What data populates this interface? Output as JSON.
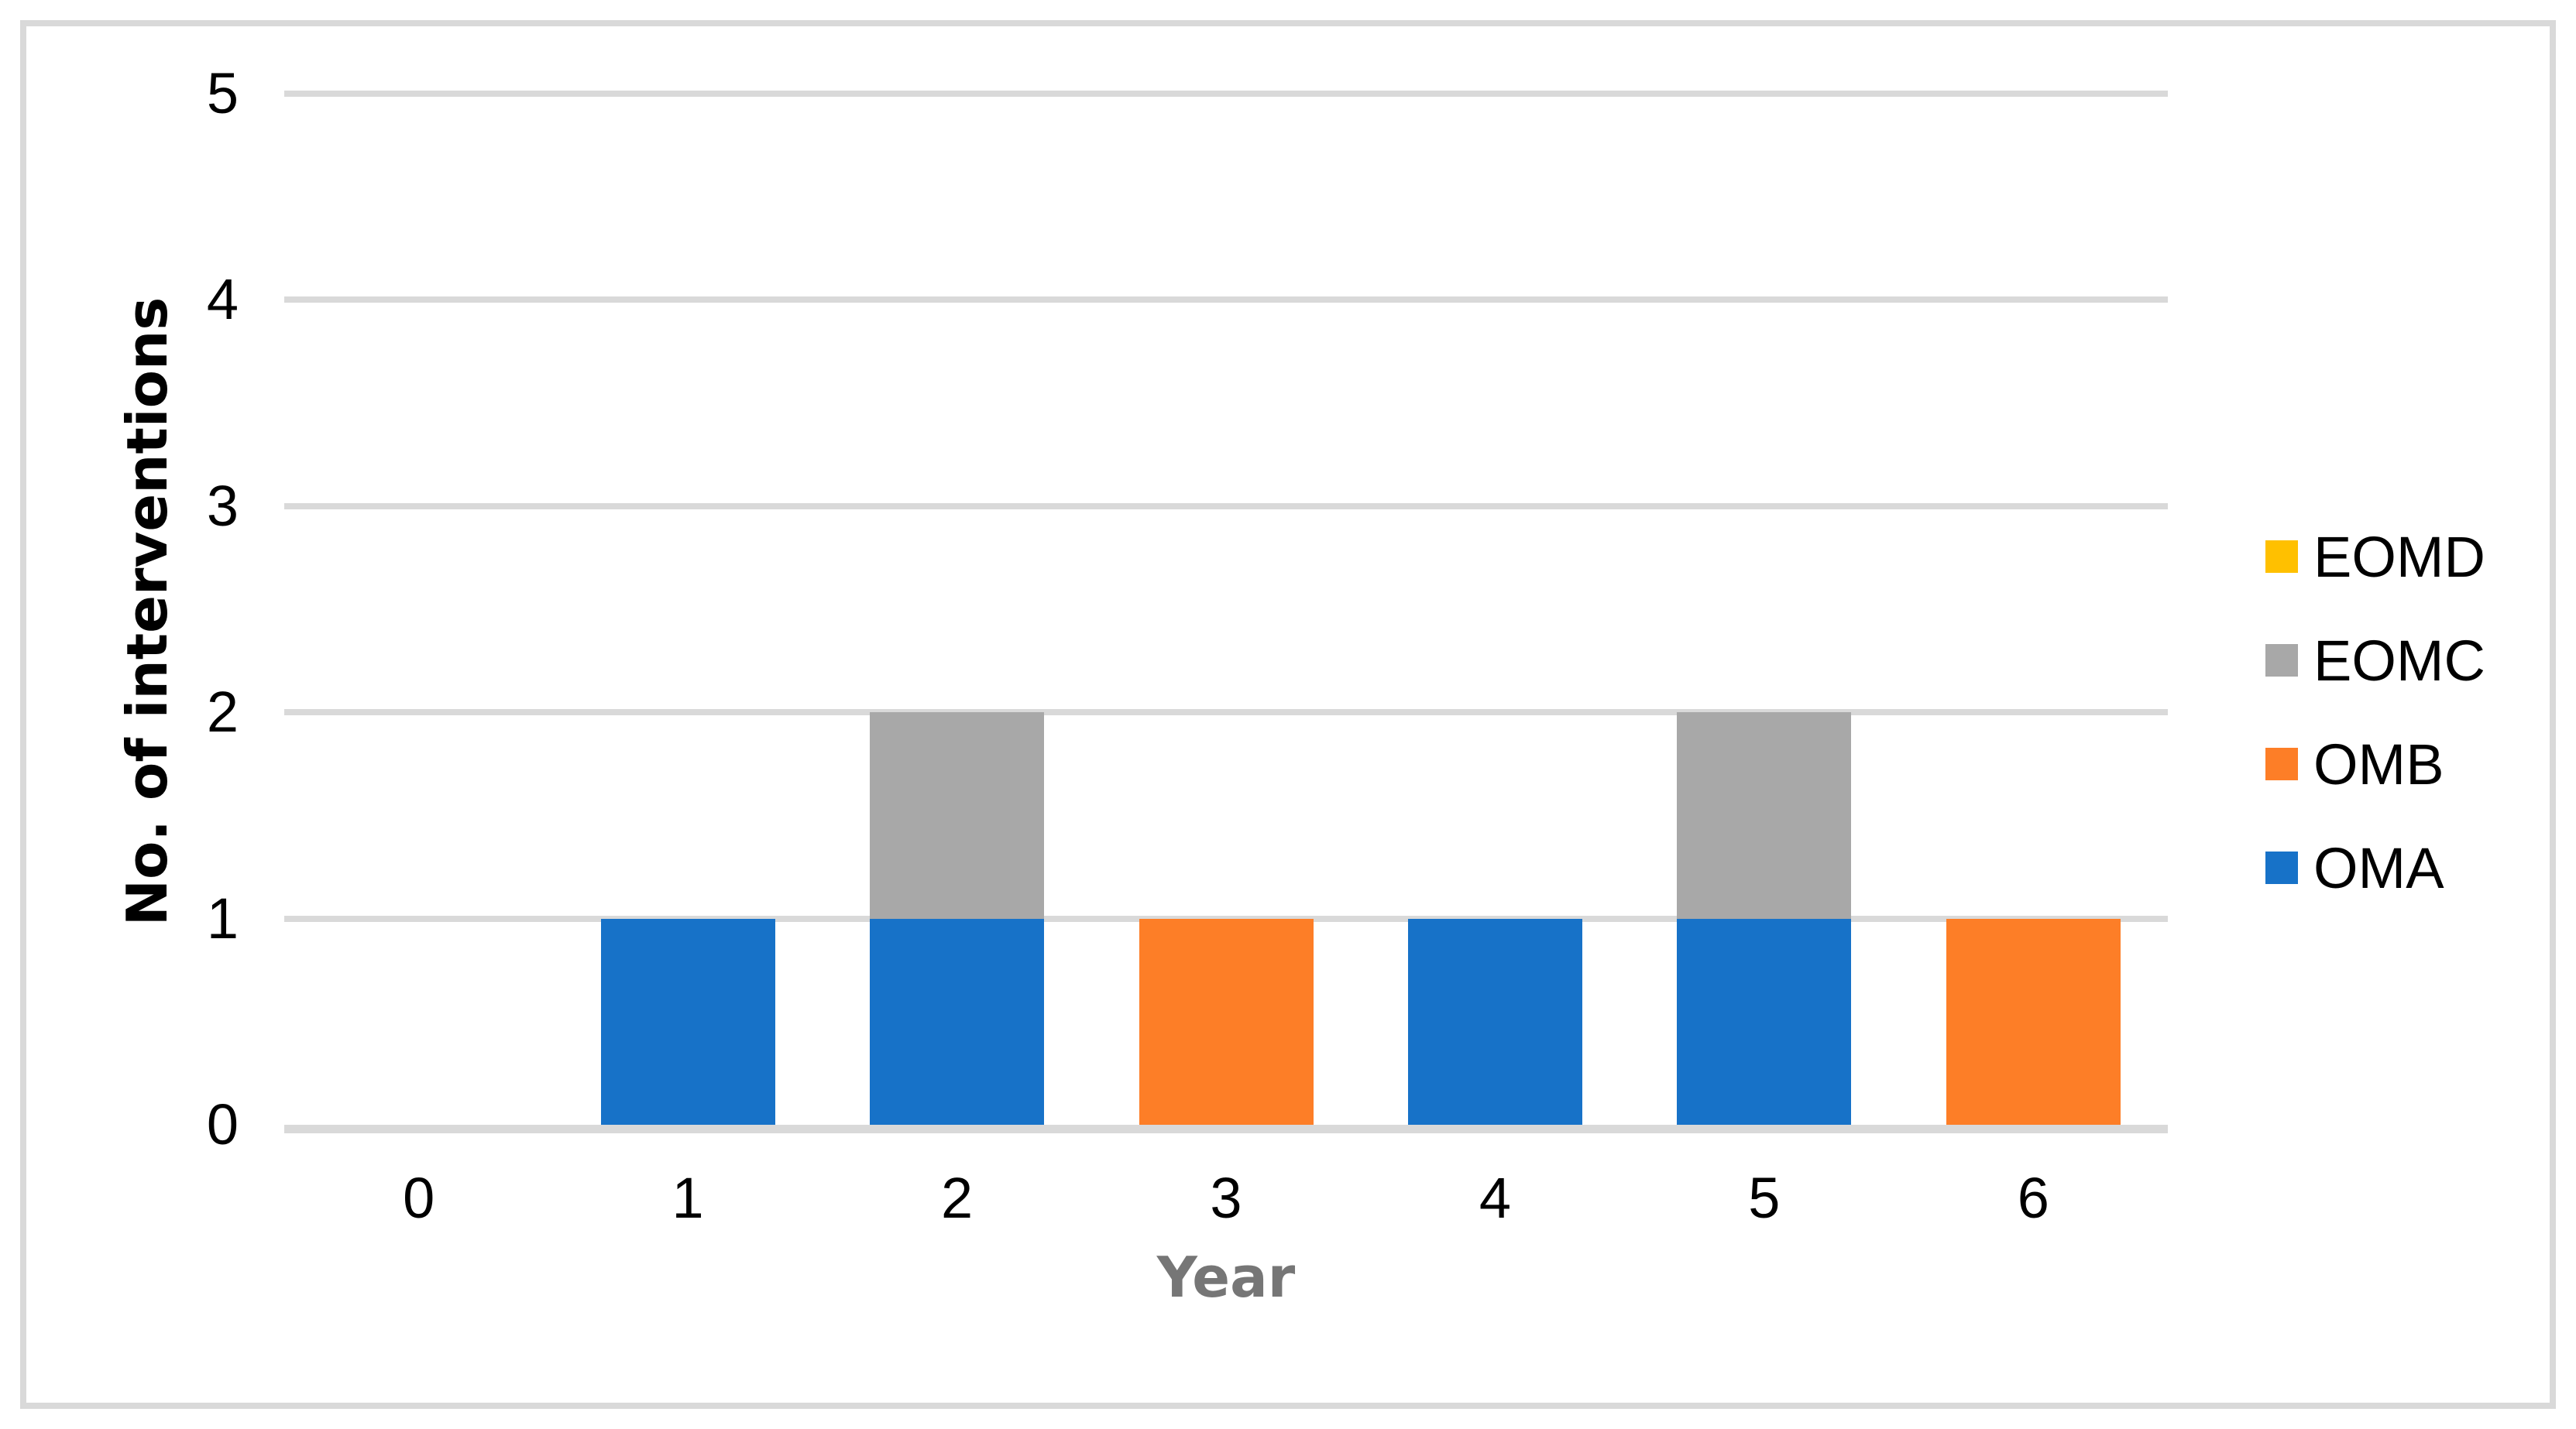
{
  "chart_data": {
    "type": "bar",
    "stacked": true,
    "title": "",
    "xlabel": "Year",
    "ylabel": "No. of interventions",
    "categories": [
      "0",
      "1",
      "2",
      "3",
      "4",
      "5",
      "6"
    ],
    "series": [
      {
        "name": "OMA",
        "color": "#1772C8",
        "values": [
          0,
          1,
          1,
          0,
          1,
          1,
          0
        ]
      },
      {
        "name": "OMB",
        "color": "#FD7E27",
        "values": [
          0,
          0,
          0,
          1,
          0,
          0,
          1
        ]
      },
      {
        "name": "EOMC",
        "color": "#A8A8A8",
        "values": [
          0,
          0,
          1,
          0,
          0,
          1,
          0
        ]
      },
      {
        "name": "EOMD",
        "color": "#FFC000",
        "values": [
          0,
          0,
          0,
          0,
          0,
          0,
          0
        ]
      }
    ],
    "totals_per_category": [
      0,
      1,
      2,
      1,
      1,
      2,
      1
    ],
    "ylim": [
      0,
      5
    ],
    "yticks": [
      0,
      1,
      2,
      3,
      4,
      5
    ],
    "grid": "horizontal",
    "legend_position": "right",
    "legend": [
      {
        "label": "EOMD",
        "color": "#FFC000"
      },
      {
        "label": "EOMC",
        "color": "#A8A8A8"
      },
      {
        "label": "OMB",
        "color": "#FD7E27"
      },
      {
        "label": "OMA",
        "color": "#1772C8"
      }
    ],
    "colors": {
      "gridline": "#D9D9D9",
      "axis_line": "#D9D9D9",
      "frame_border": "#D9D9D9",
      "x_title_color": "#767676",
      "tick_label_color": "#000000",
      "background": "#FFFFFF"
    }
  }
}
